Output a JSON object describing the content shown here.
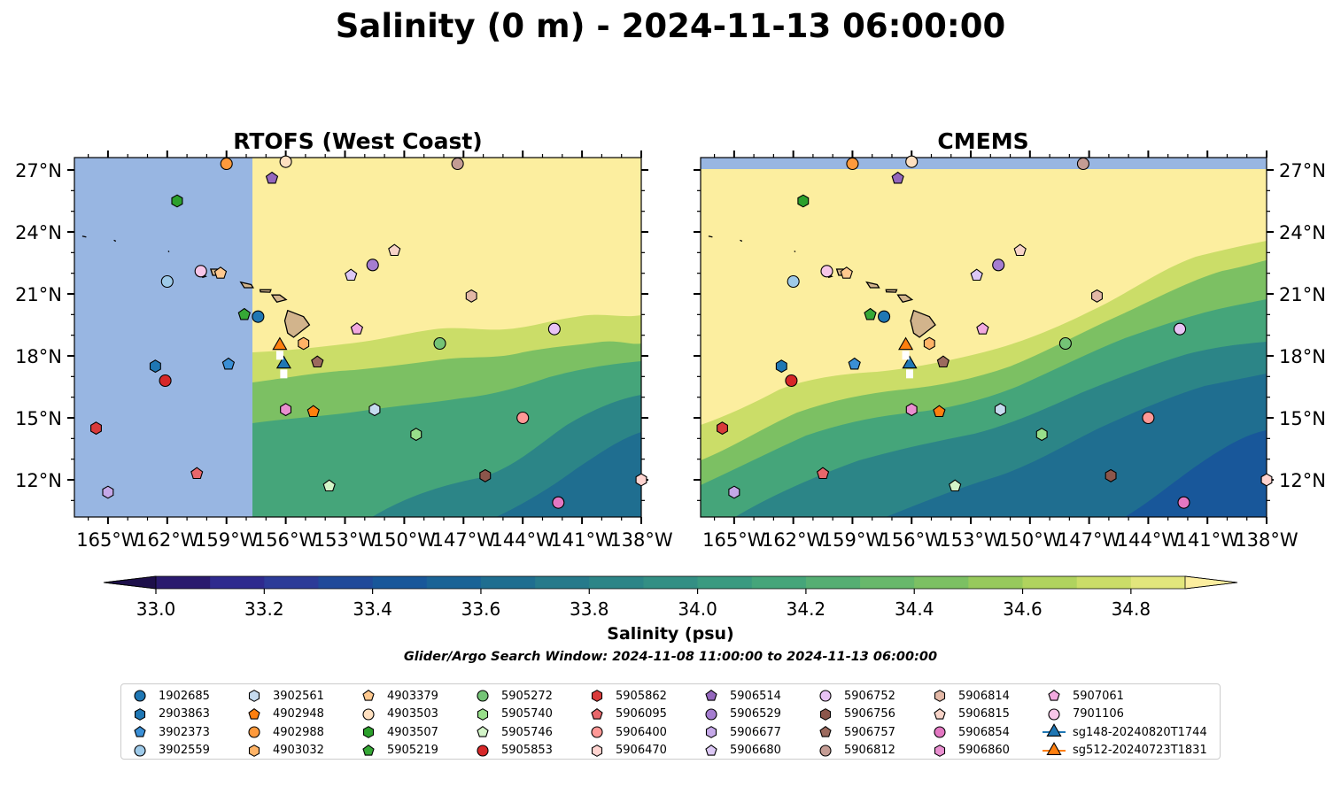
{
  "title": "Salinity (0 m) - 2024-11-13 06:00:00",
  "panels": [
    {
      "title": "RTOFS (West Coast)"
    },
    {
      "title": "CMEMS"
    }
  ],
  "chart_data": {
    "type": "heatmap",
    "x_ticks": [
      "165°W",
      "162°W",
      "159°W",
      "156°W",
      "153°W",
      "150°W",
      "147°W",
      "144°W",
      "141°W",
      "138°W"
    ],
    "x_tick_values": [
      -165,
      -162,
      -159,
      -156,
      -153,
      -150,
      -147,
      -144,
      -141,
      -138
    ],
    "y_ticks": [
      "27°N",
      "24°N",
      "21°N",
      "18°N",
      "15°N",
      "12°N"
    ],
    "y_tick_values": [
      27,
      24,
      21,
      18,
      15,
      12
    ],
    "xlim": [
      -166.7,
      -138
    ],
    "ylim": [
      10.2,
      27.6
    ],
    "colorbar": {
      "label": "Salinity (psu)",
      "ticks": [
        "33.0",
        "33.2",
        "33.4",
        "33.6",
        "33.8",
        "34.0",
        "34.2",
        "34.4",
        "34.6",
        "34.8"
      ],
      "levels": [
        33.0,
        33.1,
        33.2,
        33.3,
        33.4,
        33.5,
        33.6,
        33.7,
        33.8,
        33.9,
        34.0,
        34.1,
        34.2,
        34.3,
        34.4,
        34.5,
        34.6,
        34.7,
        34.8,
        34.9
      ],
      "colors": [
        "#2a1a6e",
        "#2e2a8e",
        "#2c3b98",
        "#204a9a",
        "#18579a",
        "#1a6396",
        "#1f6e90",
        "#267a8b",
        "#2c8587",
        "#338f84",
        "#3a9a80",
        "#45a57a",
        "#55ae73",
        "#68b86b",
        "#7cc063",
        "#97c95c",
        "#b0d35e",
        "#cbdd68",
        "#e2e67c",
        "#f9ef99"
      ],
      "under_color": "#1d0f4a",
      "over_color": "#fcee9f"
    },
    "subtitle": "Glider/Argo Search Window: 2024-11-08 11:00:00 to 2024-11-13 06:00:00",
    "rtofs_missing_west_of_lon": -157.5,
    "cmems_missing_north_of_lat": 27.0,
    "missing_color": "#98b6e2",
    "land_color": "#d2b48c",
    "observations": [
      {
        "id": "1902685",
        "marker": "circle",
        "color": "#1f77b4",
        "lon": -157.4,
        "lat": 19.9
      },
      {
        "id": "2903863",
        "marker": "hexagon",
        "color": "#1f77b4",
        "lon": -162.6,
        "lat": 17.5
      },
      {
        "id": "3902373",
        "marker": "pentagon",
        "color": "#3a8fd6",
        "lon": -158.9,
        "lat": 17.6
      },
      {
        "id": "3902559",
        "marker": "circle",
        "color": "#9ecae9",
        "lon": -162.0,
        "lat": 21.6
      },
      {
        "id": "3902561",
        "marker": "hexagon",
        "color": "#c6dbef",
        "lon": -151.5,
        "lat": 15.4
      },
      {
        "id": "4902948",
        "marker": "pentagon",
        "color": "#ff7f0e",
        "lon": -154.6,
        "lat": 15.3
      },
      {
        "id": "4902988",
        "marker": "circle",
        "color": "#ff9a3c",
        "lon": -159.0,
        "lat": 27.3
      },
      {
        "id": "4903032",
        "marker": "hexagon",
        "color": "#ffb366",
        "lon": -155.1,
        "lat": 18.6
      },
      {
        "id": "4903379",
        "marker": "pentagon",
        "color": "#ffc98f",
        "lon": -159.3,
        "lat": 22.0
      },
      {
        "id": "4903503",
        "marker": "circle",
        "color": "#ffe0c0",
        "lon": -156.0,
        "lat": 27.4
      },
      {
        "id": "4903507",
        "marker": "hexagon",
        "color": "#2ca02c",
        "lon": -161.5,
        "lat": 25.5
      },
      {
        "id": "5905219",
        "marker": "pentagon",
        "color": "#36a836",
        "lon": -158.1,
        "lat": 20.0
      },
      {
        "id": "5905272",
        "marker": "circle",
        "color": "#74c476",
        "lon": -148.2,
        "lat": 18.6
      },
      {
        "id": "5905740",
        "marker": "hexagon",
        "color": "#98df8a",
        "lon": -149.4,
        "lat": 14.2
      },
      {
        "id": "5905746",
        "marker": "pentagon",
        "color": "#d3f5c8",
        "lon": -153.8,
        "lat": 11.7
      },
      {
        "id": "5905853",
        "marker": "circle",
        "color": "#d62728",
        "lon": -162.1,
        "lat": 16.8
      },
      {
        "id": "5905862",
        "marker": "hexagon",
        "color": "#d93a3a",
        "lon": -165.6,
        "lat": 14.5
      },
      {
        "id": "5906095",
        "marker": "pentagon",
        "color": "#e8676b",
        "lon": -160.5,
        "lat": 12.3
      },
      {
        "id": "5906400",
        "marker": "circle",
        "color": "#ff9896",
        "lon": -144.0,
        "lat": 15.0
      },
      {
        "id": "5906470",
        "marker": "hexagon",
        "color": "#ffd4d0",
        "lon": -138.0,
        "lat": 12.0
      },
      {
        "id": "5906514",
        "marker": "pentagon",
        "color": "#9467bd",
        "lon": -156.7,
        "lat": 26.6
      },
      {
        "id": "5906529",
        "marker": "circle",
        "color": "#a57dd0",
        "lon": -151.6,
        "lat": 22.4
      },
      {
        "id": "5906677",
        "marker": "hexagon",
        "color": "#c5a8e8",
        "lon": -165.0,
        "lat": 11.4
      },
      {
        "id": "5906680",
        "marker": "pentagon",
        "color": "#dcc8f5",
        "lon": -152.7,
        "lat": 21.9
      },
      {
        "id": "5906752",
        "marker": "circle",
        "color": "#e8c3f5",
        "lon": -142.4,
        "lat": 19.3
      },
      {
        "id": "5906756",
        "marker": "hexagon",
        "color": "#8c564b",
        "lon": -145.9,
        "lat": 12.2
      },
      {
        "id": "5906757",
        "marker": "pentagon",
        "color": "#9c6a5e",
        "lon": -154.4,
        "lat": 17.7
      },
      {
        "id": "5906812",
        "marker": "circle",
        "color": "#c49c94",
        "lon": -147.3,
        "lat": 27.3
      },
      {
        "id": "5906814",
        "marker": "hexagon",
        "color": "#e3b8a6",
        "lon": -146.6,
        "lat": 20.9
      },
      {
        "id": "5906815",
        "marker": "pentagon",
        "color": "#f8d4c8",
        "lon": -150.5,
        "lat": 23.1
      },
      {
        "id": "5906854",
        "marker": "circle",
        "color": "#e377c2",
        "lon": -142.2,
        "lat": 10.9
      },
      {
        "id": "5906860",
        "marker": "hexagon",
        "color": "#e98fd0",
        "lon": -156.0,
        "lat": 15.4
      },
      {
        "id": "5907061",
        "marker": "pentagon",
        "color": "#f2a9df",
        "lon": -152.4,
        "lat": 19.3
      },
      {
        "id": "7901106",
        "marker": "circle",
        "color": "#f7c6e8",
        "lon": -160.3,
        "lat": 22.1
      },
      {
        "id": "sg148-20240820T1744",
        "marker": "triangle",
        "color": "#1f77b4",
        "lon": -156.1,
        "lat": 17.6
      },
      {
        "id": "sg512-20240723T1831",
        "marker": "triangle",
        "color": "#ff7f0e",
        "lon": -156.3,
        "lat": 18.5
      }
    ]
  }
}
